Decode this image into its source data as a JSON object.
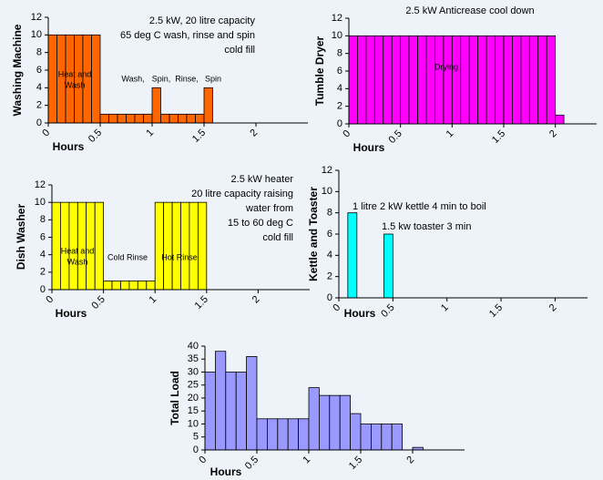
{
  "chart_data": [
    {
      "type": "histogram",
      "ylabel": "Washing Machine",
      "xlabel": "Hours",
      "color": "#ff6600",
      "bins": [
        0,
        0.083,
        0.167,
        0.25,
        0.333,
        0.417,
        0.5,
        0.583,
        0.667,
        0.75,
        0.833,
        0.917,
        1,
        1.083,
        1.167,
        1.25,
        1.333,
        1.417,
        1.5,
        1.583
      ],
      "counts": [
        10,
        10,
        10,
        10,
        10,
        10,
        1,
        1,
        1,
        1,
        1,
        1,
        4,
        1,
        1,
        1,
        1,
        1,
        4
      ],
      "xlim": [
        0,
        2.5
      ],
      "xticks": [
        0,
        0.5,
        1,
        1.5,
        2
      ],
      "ylim": [
        0,
        12
      ],
      "yticks": [
        0,
        2,
        4,
        6,
        8,
        10,
        12
      ],
      "annotations": [
        "2.5 kW, 20 litre capacity",
        "65 deg C wash, rinse and spin",
        "cold fill",
        "Heat and",
        "Wash",
        "Wash,",
        "Spin,",
        "Rinse,",
        "Spin"
      ]
    },
    {
      "type": "histogram",
      "ylabel": "Tumble Dryer",
      "xlabel": "Hours",
      "color": "#ff00ff",
      "bins": [
        0,
        0.083,
        0.167,
        0.25,
        0.333,
        0.417,
        0.5,
        0.583,
        0.667,
        0.75,
        0.833,
        0.917,
        1,
        1.083,
        1.167,
        1.25,
        1.333,
        1.417,
        1.5,
        1.583,
        1.667,
        1.75,
        1.833,
        1.917,
        2,
        2.083
      ],
      "counts": [
        10,
        10,
        10,
        10,
        10,
        10,
        10,
        10,
        10,
        10,
        10,
        10,
        10,
        10,
        10,
        10,
        10,
        10,
        10,
        10,
        10,
        10,
        10,
        10,
        1
      ],
      "xlim": [
        0,
        2.4
      ],
      "xticks": [
        0,
        0.5,
        1,
        1.5,
        2
      ],
      "ylim": [
        0,
        12
      ],
      "yticks": [
        0,
        2,
        4,
        6,
        8,
        10,
        12
      ],
      "annotations": [
        "2.5 kW  Anticrease cool down",
        "Drying"
      ]
    },
    {
      "type": "histogram",
      "ylabel": "Dish Washer",
      "xlabel": "Hours",
      "color": "#ffff00",
      "bins": [
        0,
        0.083,
        0.167,
        0.25,
        0.333,
        0.417,
        0.5,
        0.583,
        0.667,
        0.75,
        0.833,
        0.917,
        1,
        1.083,
        1.167,
        1.25,
        1.333,
        1.417,
        1.5
      ],
      "counts": [
        10,
        10,
        10,
        10,
        10,
        10,
        1,
        1,
        1,
        1,
        1,
        1,
        10,
        10,
        10,
        10,
        10,
        10
      ],
      "xlim": [
        0,
        2.5
      ],
      "xticks": [
        0,
        0.5,
        1,
        1.5,
        2
      ],
      "ylim": [
        0,
        12
      ],
      "yticks": [
        0,
        2,
        4,
        6,
        8,
        10,
        12
      ],
      "annotations": [
        "2.5 kW heater",
        "20 litre capacity raising",
        "water from",
        "15 to 60 deg C",
        "cold fill",
        "Heat and",
        "Wash",
        "Cold Rinse",
        "Hot Rinse"
      ]
    },
    {
      "type": "histogram",
      "ylabel": "Kettle and Toaster",
      "xlabel": "Hours",
      "color": "#00ffff",
      "bins": [
        0,
        0.083,
        0.167,
        0.25,
        0.333,
        0.417,
        0.5
      ],
      "counts": [
        0,
        8,
        0,
        0,
        0,
        6
      ],
      "xlim": [
        0,
        2.3
      ],
      "xticks": [
        0,
        0.5,
        1,
        1.5,
        2
      ],
      "ylim": [
        0,
        12
      ],
      "yticks": [
        0,
        2,
        4,
        6,
        8,
        10,
        12
      ],
      "annotations": [
        "1 litre 2 kW kettle 4 min to boil",
        "1.5 kw toaster 3 min"
      ]
    },
    {
      "type": "histogram",
      "ylabel": "Total Load",
      "xlabel": "Hours",
      "color": "#9999ff",
      "bins": [
        0,
        0.1,
        0.2,
        0.3,
        0.4,
        0.5,
        0.6,
        0.7,
        0.8,
        0.9,
        1,
        1.1,
        1.2,
        1.3,
        1.4,
        1.5,
        1.6,
        1.7,
        1.8,
        1.9,
        2,
        2.1
      ],
      "counts": [
        30,
        38,
        30,
        30,
        36,
        12,
        12,
        12,
        12,
        12,
        24,
        21,
        21,
        21,
        14,
        10,
        10,
        10,
        10,
        0,
        1
      ],
      "xlim": [
        0,
        2.5
      ],
      "xticks": [
        0,
        0.5,
        1,
        1.5,
        2
      ],
      "ylim": [
        0,
        40
      ],
      "yticks": [
        0,
        5,
        10,
        15,
        20,
        25,
        30,
        35,
        40
      ],
      "annotations": []
    }
  ]
}
